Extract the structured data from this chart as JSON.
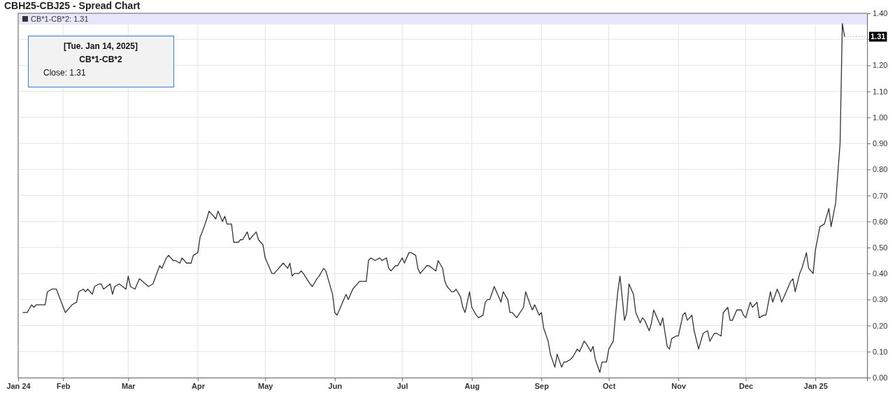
{
  "chart_data": {
    "type": "line",
    "title": "CBH25-CBJ25 - Spread Chart",
    "x": [
      "2024-01-14",
      "2024-01-16",
      "2024-01-18",
      "2024-01-19",
      "2024-01-20",
      "2024-01-24",
      "2024-01-25",
      "2024-01-27",
      "2024-01-29",
      "2024-02-02",
      "2024-02-05",
      "2024-02-07",
      "2024-02-08",
      "2024-02-10",
      "2024-02-11",
      "2024-02-12",
      "2024-02-14",
      "2024-02-15",
      "2024-02-17",
      "2024-02-18",
      "2024-02-19",
      "2024-02-22",
      "2024-02-23",
      "2024-02-24",
      "2024-02-26",
      "2024-02-29",
      "2024-03-01",
      "2024-03-02",
      "2024-03-04",
      "2024-03-06",
      "2024-03-10",
      "2024-03-12",
      "2024-03-15",
      "2024-03-16",
      "2024-03-18",
      "2024-03-19",
      "2024-03-21",
      "2024-03-22",
      "2024-03-24",
      "2024-03-25",
      "2024-03-27",
      "2024-03-29",
      "2024-03-30",
      "2024-04-01",
      "2024-04-02",
      "2024-04-03",
      "2024-04-05",
      "2024-04-06",
      "2024-04-08",
      "2024-04-09",
      "2024-04-10",
      "2024-04-12",
      "2024-04-13",
      "2024-04-14",
      "2024-04-16",
      "2024-04-17",
      "2024-04-19",
      "2024-04-20",
      "2024-04-21",
      "2024-04-23",
      "2024-04-24",
      "2024-04-27",
      "2024-04-28",
      "2024-04-30",
      "2024-05-01",
      "2024-05-02",
      "2024-05-04",
      "2024-05-05",
      "2024-05-06",
      "2024-05-08",
      "2024-05-09",
      "2024-05-11",
      "2024-05-12",
      "2024-05-13",
      "2024-05-14",
      "2024-05-16",
      "2024-05-17",
      "2024-05-18",
      "2024-05-21",
      "2024-05-22",
      "2024-05-24",
      "2024-05-25",
      "2024-05-27",
      "2024-05-28",
      "2024-05-29",
      "2024-05-31",
      "2024-06-01",
      "2024-06-02",
      "2024-06-04",
      "2024-06-06",
      "2024-06-07",
      "2024-06-09",
      "2024-06-10",
      "2024-06-12",
      "2024-06-15",
      "2024-06-16",
      "2024-06-17",
      "2024-06-19",
      "2024-06-21",
      "2024-06-22",
      "2024-06-24",
      "2024-06-25",
      "2024-06-26",
      "2024-06-28",
      "2024-06-29",
      "2024-07-01",
      "2024-07-02",
      "2024-07-04",
      "2024-07-05",
      "2024-07-07",
      "2024-07-08",
      "2024-07-09",
      "2024-07-11",
      "2024-07-12",
      "2024-07-13",
      "2024-07-16",
      "2024-07-17",
      "2024-07-19",
      "2024-07-20",
      "2024-07-21",
      "2024-07-23",
      "2024-07-24",
      "2024-07-25",
      "2024-07-27",
      "2024-07-28",
      "2024-07-29",
      "2024-07-31",
      "2024-08-01",
      "2024-08-03",
      "2024-08-04",
      "2024-08-06",
      "2024-08-07",
      "2024-08-08",
      "2024-08-09",
      "2024-08-11",
      "2024-08-12",
      "2024-08-14",
      "2024-08-15",
      "2024-08-17",
      "2024-08-18",
      "2024-08-19",
      "2024-08-21",
      "2024-08-24",
      "2024-08-25",
      "2024-08-27",
      "2024-08-28",
      "2024-08-29",
      "2024-08-31",
      "2024-09-01",
      "2024-09-02",
      "2024-09-04",
      "2024-09-05",
      "2024-09-07",
      "2024-09-08",
      "2024-09-10",
      "2024-09-11",
      "2024-09-12",
      "2024-09-14",
      "2024-09-15",
      "2024-09-17",
      "2024-09-18",
      "2024-09-20",
      "2024-09-21",
      "2024-09-23",
      "2024-09-24",
      "2024-09-25",
      "2024-09-27",
      "2024-09-28",
      "2024-09-30",
      "2024-10-01",
      "2024-10-03",
      "2024-10-04",
      "2024-10-05",
      "2024-10-06",
      "2024-10-08",
      "2024-10-09",
      "2024-10-10",
      "2024-10-12",
      "2024-10-13",
      "2024-10-15",
      "2024-10-16",
      "2024-10-17",
      "2024-10-19",
      "2024-10-20",
      "2024-10-21",
      "2024-10-23",
      "2024-10-24",
      "2024-10-25",
      "2024-10-27",
      "2024-10-28",
      "2024-10-29",
      "2024-10-31",
      "2024-11-01",
      "2024-11-03",
      "2024-11-04",
      "2024-11-05",
      "2024-11-07",
      "2024-11-08",
      "2024-11-10",
      "2024-11-11",
      "2024-11-12",
      "2024-11-14",
      "2024-11-15",
      "2024-11-17",
      "2024-11-18",
      "2024-11-20",
      "2024-11-21",
      "2024-11-23",
      "2024-11-24",
      "2024-11-25",
      "2024-11-27",
      "2024-11-29",
      "2024-11-30",
      "2024-12-01",
      "2024-12-03",
      "2024-12-04",
      "2024-12-06",
      "2024-12-07",
      "2024-12-09",
      "2024-12-10",
      "2024-12-12",
      "2024-12-13",
      "2024-12-15",
      "2024-12-16",
      "2024-12-17",
      "2024-12-19",
      "2024-12-21",
      "2024-12-22",
      "2024-12-23",
      "2024-12-25",
      "2024-12-26",
      "2024-12-28",
      "2024-12-29",
      "2024-12-31",
      "2025-01-01",
      "2025-01-03",
      "2025-01-05",
      "2025-01-07",
      "2025-01-08",
      "2025-01-10",
      "2025-01-12",
      "2025-01-13",
      "2025-01-14"
    ],
    "series": [
      {
        "name": "CB*1-CB*2: 1.31",
        "color": "#333333",
        "values": [
          0.25,
          0.25,
          0.28,
          0.27,
          0.28,
          0.28,
          0.33,
          0.34,
          0.34,
          0.25,
          0.28,
          0.29,
          0.33,
          0.34,
          0.33,
          0.34,
          0.32,
          0.35,
          0.36,
          0.36,
          0.34,
          0.36,
          0.32,
          0.35,
          0.36,
          0.34,
          0.39,
          0.35,
          0.34,
          0.38,
          0.35,
          0.36,
          0.43,
          0.42,
          0.46,
          0.47,
          0.45,
          0.45,
          0.44,
          0.46,
          0.44,
          0.44,
          0.47,
          0.48,
          0.54,
          0.56,
          0.61,
          0.64,
          0.62,
          0.61,
          0.64,
          0.6,
          0.62,
          0.59,
          0.59,
          0.52,
          0.52,
          0.53,
          0.53,
          0.56,
          0.53,
          0.56,
          0.53,
          0.51,
          0.46,
          0.44,
          0.4,
          0.4,
          0.41,
          0.43,
          0.44,
          0.42,
          0.44,
          0.39,
          0.4,
          0.4,
          0.41,
          0.4,
          0.36,
          0.35,
          0.38,
          0.39,
          0.42,
          0.41,
          0.38,
          0.32,
          0.25,
          0.24,
          0.28,
          0.32,
          0.3,
          0.34,
          0.35,
          0.37,
          0.37,
          0.45,
          0.46,
          0.45,
          0.46,
          0.45,
          0.46,
          0.42,
          0.41,
          0.43,
          0.43,
          0.46,
          0.44,
          0.48,
          0.48,
          0.47,
          0.42,
          0.4,
          0.42,
          0.43,
          0.43,
          0.41,
          0.45,
          0.42,
          0.37,
          0.35,
          0.33,
          0.33,
          0.34,
          0.31,
          0.27,
          0.25,
          0.33,
          0.27,
          0.24,
          0.23,
          0.24,
          0.29,
          0.3,
          0.3,
          0.35,
          0.33,
          0.29,
          0.33,
          0.3,
          0.25,
          0.25,
          0.23,
          0.27,
          0.33,
          0.28,
          0.26,
          0.28,
          0.24,
          0.25,
          0.19,
          0.14,
          0.09,
          0.04,
          0.09,
          0.04,
          0.06,
          0.06,
          0.07,
          0.08,
          0.11,
          0.1,
          0.14,
          0.13,
          0.1,
          0.12,
          0.07,
          0.02,
          0.06,
          0.06,
          0.11,
          0.14,
          0.24,
          0.33,
          0.39,
          0.22,
          0.25,
          0.36,
          0.32,
          0.25,
          0.21,
          0.23,
          0.22,
          0.18,
          0.21,
          0.26,
          0.22,
          0.2,
          0.23,
          0.12,
          0.11,
          0.15,
          0.16,
          0.16,
          0.24,
          0.25,
          0.22,
          0.24,
          0.18,
          0.11,
          0.14,
          0.17,
          0.18,
          0.14,
          0.17,
          0.17,
          0.16,
          0.25,
          0.27,
          0.22,
          0.22,
          0.26,
          0.26,
          0.24,
          0.23,
          0.29,
          0.27,
          0.29,
          0.23,
          0.24,
          0.24,
          0.33,
          0.29,
          0.34,
          0.32,
          0.29,
          0.33,
          0.37,
          0.38,
          0.33,
          0.4,
          0.42,
          0.48,
          0.42,
          0.4,
          0.49,
          0.58,
          0.59,
          0.65,
          0.58,
          0.67,
          0.9,
          1.36,
          1.31
        ]
      }
    ],
    "xlim": [
      "2024-01-12",
      "2025-01-24"
    ],
    "xticks": [
      {
        "value": "2024-01-12",
        "label": "Jan 24"
      },
      {
        "value": "2024-02-01",
        "label": "Feb"
      },
      {
        "value": "2024-03-01",
        "label": "Mar"
      },
      {
        "value": "2024-04-01",
        "label": "Apr"
      },
      {
        "value": "2024-05-01",
        "label": "May"
      },
      {
        "value": "2024-06-01",
        "label": "Jun"
      },
      {
        "value": "2024-07-01",
        "label": "Jul"
      },
      {
        "value": "2024-08-01",
        "label": "Aug"
      },
      {
        "value": "2024-09-01",
        "label": "Sep"
      },
      {
        "value": "2024-10-01",
        "label": "Oct"
      },
      {
        "value": "2024-11-01",
        "label": "Nov"
      },
      {
        "value": "2024-12-01",
        "label": "Dec"
      },
      {
        "value": "2025-01-01",
        "label": "Jan 25"
      }
    ],
    "ylim": [
      0,
      1.4
    ],
    "yticks": [
      {
        "value": 0,
        "label": "0.00"
      },
      {
        "value": 0.1,
        "label": "0.10"
      },
      {
        "value": 0.2,
        "label": "0.20"
      },
      {
        "value": 0.3,
        "label": "0.30"
      },
      {
        "value": 0.4,
        "label": "0.40"
      },
      {
        "value": 0.5,
        "label": "0.50"
      },
      {
        "value": 0.6,
        "label": "0.60"
      },
      {
        "value": 0.7,
        "label": "0.70"
      },
      {
        "value": 0.8,
        "label": "0.80"
      },
      {
        "value": 0.9,
        "label": "0.90"
      },
      {
        "value": 1.0,
        "label": "1.00"
      },
      {
        "value": 1.1,
        "label": "1.10"
      },
      {
        "value": 1.2,
        "label": "1.20"
      },
      {
        "value": 1.3,
        "label": null
      },
      {
        "value": 1.4,
        "label": "1.40"
      }
    ],
    "grid": true,
    "legend": "top left",
    "annotations": [
      "[Tue. Jan 14, 2025]",
      "CB*1-CB*2",
      "Close: 1.31",
      {
        "text": "1.31",
        "x": "2025-01-14",
        "y": 1.31
      }
    ]
  }
}
